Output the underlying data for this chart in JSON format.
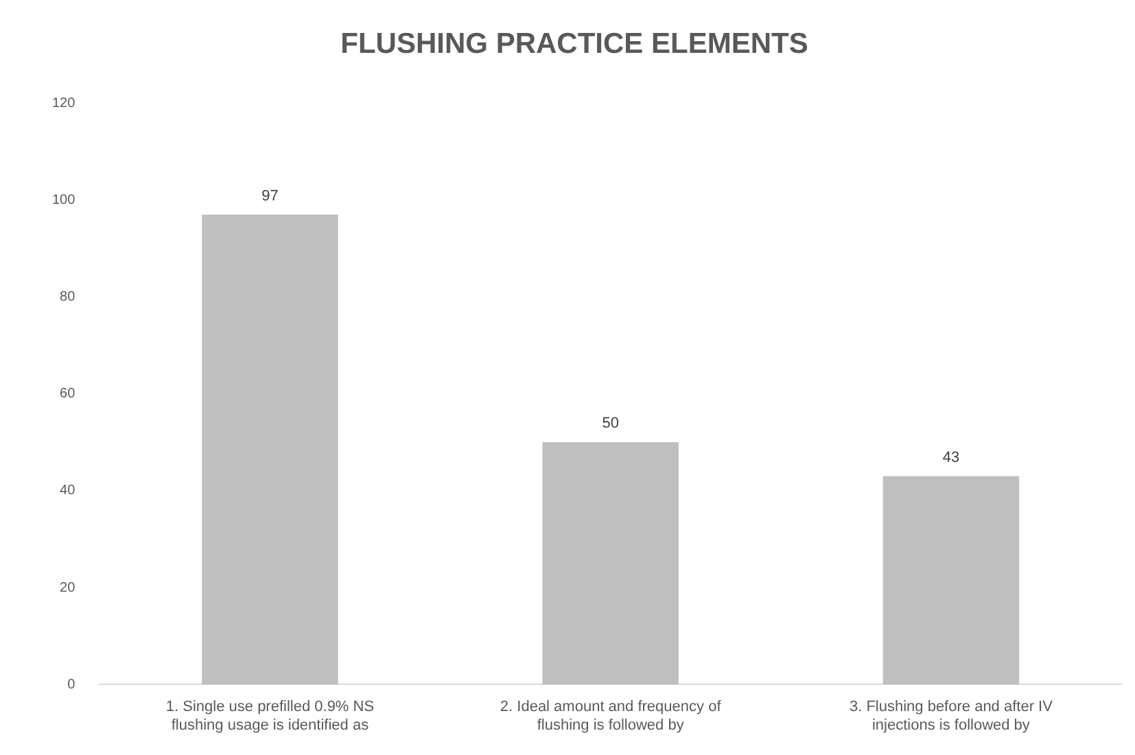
{
  "chart_data": {
    "type": "bar",
    "title": "FLUSHING PRACTICE ELEMENTS",
    "categories": [
      "1. Single use prefilled 0.9% NS flushing usage is identified as",
      "2. Ideal amount and frequency of flushing is followed by",
      "3. Flushing before and after IV injections is followed by"
    ],
    "values": [
      97,
      50,
      43
    ],
    "color": "#bfbfbf",
    "ylim": [
      0,
      120
    ],
    "yticks": [
      0,
      20,
      40,
      60,
      80,
      100,
      120
    ],
    "grid": false,
    "legend": false,
    "data_labels": true
  }
}
